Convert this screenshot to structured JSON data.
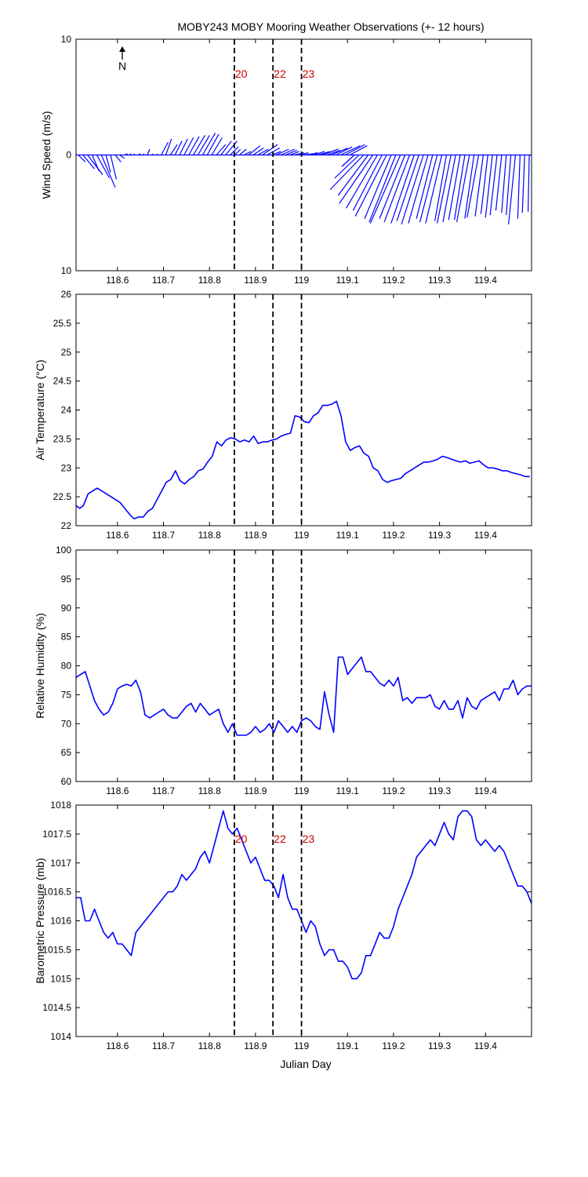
{
  "figure": {
    "title": "MOBY243 MOBY Mooring Weather Observations (+- 12 hours)",
    "north_label": "N",
    "xlabel": "Julian Day",
    "colors": {
      "line": "#0000ff",
      "marker_label": "#cc0000",
      "axis": "#000000",
      "background": "#ffffff"
    }
  },
  "chart_data": [
    {
      "type": "line",
      "variant": "wind-vectors",
      "ylabel": "Wind Speed (m/s)",
      "xlim": [
        118.51,
        119.5
      ],
      "ylim": [
        -10,
        10
      ],
      "yticklabels": [
        "10",
        "0",
        "10"
      ],
      "xticks": [
        "118.6",
        "118.7",
        "118.8",
        "118.9",
        "119",
        "119.1",
        "119.2",
        "119.3",
        "119.4"
      ],
      "vlines": [
        118.854,
        118.938,
        119.0
      ],
      "vline_labels": [
        "20",
        "22",
        "23"
      ],
      "vectors": {
        "x": [
          118.515,
          118.525,
          118.535,
          118.545,
          118.555,
          118.565,
          118.575,
          118.585,
          118.595,
          118.605,
          118.615,
          118.625,
          118.635,
          118.645,
          118.655,
          118.665,
          118.675,
          118.685,
          118.695,
          118.705,
          118.715,
          118.725,
          118.735,
          118.745,
          118.755,
          118.765,
          118.775,
          118.785,
          118.795,
          118.805,
          118.815,
          118.825,
          118.835,
          118.845,
          118.855,
          118.865,
          118.875,
          118.885,
          118.895,
          118.905,
          118.915,
          118.925,
          118.935,
          118.945,
          118.955,
          118.965,
          118.975,
          118.985,
          118.995,
          119.005,
          119.015,
          119.025,
          119.035,
          119.045,
          119.055,
          119.065,
          119.075,
          119.085,
          119.095,
          119.105,
          119.115,
          119.125,
          119.135,
          119.145,
          119.155,
          119.165,
          119.175,
          119.185,
          119.195,
          119.205,
          119.215,
          119.225,
          119.235,
          119.245,
          119.255,
          119.265,
          119.275,
          119.285,
          119.295,
          119.305,
          119.315,
          119.325,
          119.335,
          119.345,
          119.355,
          119.365,
          119.375,
          119.385,
          119.395,
          119.405,
          119.415,
          119.425,
          119.435,
          119.445,
          119.455,
          119.465,
          119.475,
          119.485,
          119.495
        ],
        "u": [
          0.6,
          1.0,
          1.3,
          0.6,
          1.1,
          1.2,
          0.4,
          0.5,
          0.5,
          0.4,
          0.3,
          0.2,
          0.1,
          0.2,
          0.1,
          0.2,
          0.1,
          0.1,
          0.6,
          0.5,
          0.6,
          0.6,
          0.7,
          0.8,
          0.9,
          1.0,
          1.0,
          1.1,
          1.0,
          0.9,
          0.8,
          0.9,
          1.0,
          0.7,
          0.5,
          0.6,
          0.6,
          1.0,
          0.9,
          0.9,
          1.3,
          1.1,
          0.8,
          1.1,
          1.2,
          1.0,
          0.8,
          0.8,
          0.8,
          0.8,
          0.8,
          1.0,
          1.1,
          1.4,
          1.2,
          1.4,
          1.4,
          1.7,
          1.7,
          1.5,
          -1.1,
          -2.1,
          -2.9,
          -2.6,
          -2.9,
          -2.7,
          -2.5,
          -2.7,
          -2.3,
          -2.3,
          -2.6,
          -2.2,
          -2.2,
          -2.0,
          -1.9,
          -1.9,
          -1.7,
          -1.4,
          -1.5,
          -1.4,
          -1.0,
          -1.2,
          -1.1,
          -1.0,
          -0.9,
          -1.1,
          -0.8,
          -1.0,
          -0.7,
          -0.6,
          -0.6,
          -0.6,
          -0.5,
          -0.4,
          -0.4,
          -0.6,
          -0.2,
          -0.2,
          -0.1
        ],
        "v": [
          -0.6,
          -1.2,
          -1.7,
          -1.4,
          -2.0,
          -2.8,
          -1.5,
          -2.1,
          -0.6,
          -0.3,
          0.1,
          0.1,
          0.1,
          0.1,
          0.1,
          0.5,
          0.1,
          0.1,
          1.1,
          1.4,
          0.9,
          1.2,
          1.4,
          1.5,
          1.6,
          1.7,
          1.7,
          1.9,
          1.8,
          1.5,
          0.9,
          1.2,
          1.2,
          0.7,
          0.5,
          0.5,
          0.3,
          0.8,
          0.6,
          0.5,
          0.9,
          0.6,
          0.3,
          0.5,
          0.5,
          0.4,
          0.3,
          0.2,
          0.2,
          0.1,
          0.2,
          0.3,
          0.3,
          0.5,
          0.4,
          0.6,
          0.7,
          0.8,
          0.9,
          0.8,
          -1.0,
          -2.0,
          -3.0,
          -3.5,
          -4.2,
          -4.6,
          -4.8,
          -5.3,
          -5.5,
          -5.8,
          -5.9,
          -5.5,
          -5.8,
          -5.9,
          -5.7,
          -6.0,
          -5.9,
          -5.5,
          -5.8,
          -5.9,
          -5.7,
          -5.9,
          -5.8,
          -5.6,
          -5.6,
          -5.8,
          -5.5,
          -5.4,
          -5.3,
          -5.1,
          -5.4,
          -5.2,
          -4.8,
          -5.0,
          -5.2,
          -6.0,
          -5.5,
          -5.0,
          -4.9
        ]
      }
    },
    {
      "type": "line",
      "ylabel": "Air Temperature (°C)",
      "xlim": [
        118.51,
        119.5
      ],
      "ylim": [
        22,
        26
      ],
      "yticks": [
        "22",
        "22.5",
        "23",
        "23.5",
        "24",
        "24.5",
        "25",
        "25.5",
        "26"
      ],
      "xticks": [
        "118.6",
        "118.7",
        "118.8",
        "118.9",
        "119",
        "119.1",
        "119.2",
        "119.3",
        "119.4"
      ],
      "vlines": [
        118.854,
        118.938,
        119.0
      ],
      "x": [
        118.51,
        118.518,
        118.526,
        118.536,
        118.546,
        118.556,
        118.566,
        118.576,
        118.586,
        118.596,
        118.606,
        118.616,
        118.626,
        118.636,
        118.646,
        118.656,
        118.666,
        118.676,
        118.686,
        118.696,
        118.706,
        118.716,
        118.726,
        118.736,
        118.746,
        118.756,
        118.766,
        118.776,
        118.786,
        118.796,
        118.806,
        118.816,
        118.826,
        118.836,
        118.846,
        118.856,
        118.866,
        118.876,
        118.886,
        118.896,
        118.906,
        118.916,
        118.926,
        118.936,
        118.946,
        118.956,
        118.966,
        118.976,
        118.986,
        118.996,
        119.006,
        119.016,
        119.026,
        119.036,
        119.046,
        119.056,
        119.066,
        119.076,
        119.086,
        119.096,
        119.106,
        119.116,
        119.126,
        119.136,
        119.146,
        119.156,
        119.166,
        119.176,
        119.186,
        119.196,
        119.206,
        119.216,
        119.226,
        119.236,
        119.246,
        119.256,
        119.266,
        119.276,
        119.286,
        119.296,
        119.306,
        119.316,
        119.326,
        119.336,
        119.346,
        119.356,
        119.366,
        119.376,
        119.386,
        119.396,
        119.406,
        119.416,
        119.426,
        119.436,
        119.446,
        119.456,
        119.466,
        119.476,
        119.486,
        119.496
      ],
      "y": [
        22.35,
        22.3,
        22.35,
        22.55,
        22.6,
        22.65,
        22.6,
        22.55,
        22.5,
        22.45,
        22.4,
        22.3,
        22.2,
        22.12,
        22.15,
        22.15,
        22.25,
        22.3,
        22.45,
        22.6,
        22.75,
        22.8,
        22.95,
        22.78,
        22.72,
        22.8,
        22.85,
        22.95,
        22.98,
        23.1,
        23.2,
        23.45,
        23.38,
        23.48,
        23.52,
        23.5,
        23.45,
        23.48,
        23.45,
        23.55,
        23.42,
        23.45,
        23.45,
        23.48,
        23.5,
        23.55,
        23.58,
        23.6,
        23.9,
        23.88,
        23.8,
        23.78,
        23.9,
        23.95,
        24.08,
        24.08,
        24.1,
        24.15,
        23.9,
        23.45,
        23.3,
        23.35,
        23.38,
        23.25,
        23.2,
        23.0,
        22.95,
        22.8,
        22.75,
        22.78,
        22.8,
        22.82,
        22.9,
        22.95,
        23.0,
        23.05,
        23.1,
        23.1,
        23.12,
        23.15,
        23.2,
        23.18,
        23.15,
        23.12,
        23.1,
        23.12,
        23.08,
        23.1,
        23.12,
        23.05,
        23.0,
        23.0,
        22.98,
        22.95,
        22.95,
        22.92,
        22.9,
        22.88,
        22.85,
        22.85
      ]
    },
    {
      "type": "line",
      "ylabel": "Relative Humidity (%)",
      "xlim": [
        118.51,
        119.5
      ],
      "ylim": [
        60,
        100
      ],
      "yticks": [
        "60",
        "65",
        "70",
        "75",
        "80",
        "85",
        "90",
        "95",
        "100"
      ],
      "xticks": [
        "118.6",
        "118.7",
        "118.8",
        "118.9",
        "119",
        "119.1",
        "119.2",
        "119.3",
        "119.4"
      ],
      "vlines": [
        118.854,
        118.938,
        119.0
      ],
      "x": [
        118.51,
        118.52,
        118.53,
        118.54,
        118.55,
        118.56,
        118.57,
        118.58,
        118.59,
        118.6,
        118.61,
        118.62,
        118.63,
        118.64,
        118.65,
        118.66,
        118.67,
        118.68,
        118.69,
        118.7,
        118.71,
        118.72,
        118.73,
        118.74,
        118.75,
        118.76,
        118.77,
        118.78,
        118.79,
        118.8,
        118.81,
        118.82,
        118.83,
        118.84,
        118.85,
        118.86,
        118.87,
        118.88,
        118.89,
        118.9,
        118.91,
        118.92,
        118.93,
        118.94,
        118.95,
        118.96,
        118.97,
        118.98,
        118.99,
        119.0,
        119.01,
        119.02,
        119.03,
        119.04,
        119.05,
        119.06,
        119.07,
        119.08,
        119.09,
        119.1,
        119.11,
        119.12,
        119.13,
        119.14,
        119.15,
        119.16,
        119.17,
        119.18,
        119.19,
        119.2,
        119.21,
        119.22,
        119.23,
        119.24,
        119.25,
        119.26,
        119.27,
        119.28,
        119.29,
        119.3,
        119.31,
        119.32,
        119.33,
        119.34,
        119.35,
        119.36,
        119.37,
        119.38,
        119.39,
        119.4,
        119.41,
        119.42,
        119.43,
        119.44,
        119.45,
        119.46,
        119.47,
        119.48,
        119.49,
        119.5
      ],
      "y": [
        78.0,
        78.5,
        79.0,
        76.5,
        74.0,
        72.5,
        71.5,
        72.0,
        73.5,
        76.0,
        76.5,
        76.8,
        76.5,
        77.5,
        75.5,
        71.5,
        71.0,
        71.5,
        72.0,
        72.5,
        71.5,
        71.0,
        71.0,
        72.0,
        73.0,
        73.5,
        72.0,
        73.5,
        72.5,
        71.5,
        72.0,
        72.5,
        70.0,
        68.5,
        70.0,
        68.0,
        68.0,
        68.0,
        68.5,
        69.5,
        68.5,
        69.0,
        70.0,
        68.5,
        70.5,
        69.5,
        68.5,
        69.5,
        68.5,
        70.5,
        71.0,
        70.5,
        69.5,
        69.0,
        75.5,
        71.5,
        68.5,
        81.5,
        81.5,
        78.5,
        79.5,
        80.5,
        81.5,
        79.0,
        79.0,
        78.0,
        77.0,
        76.5,
        77.5,
        76.5,
        78.0,
        74.0,
        74.5,
        73.5,
        74.5,
        74.5,
        74.5,
        75.0,
        73.0,
        72.5,
        74.0,
        72.5,
        72.5,
        74.0,
        71.0,
        74.5,
        73.0,
        72.5,
        74.0,
        74.5,
        75.0,
        75.5,
        74.0,
        76.0,
        76.0,
        77.5,
        75.0,
        76.0,
        76.5,
        76.5
      ]
    },
    {
      "type": "line",
      "ylabel": "Barometric Pressure (mb)",
      "xlim": [
        118.51,
        119.5
      ],
      "ylim": [
        1014,
        1018
      ],
      "yticks": [
        "1014",
        "1014.5",
        "1015",
        "1015.5",
        "1016",
        "1016.5",
        "1017",
        "1017.5",
        "1018"
      ],
      "xticks": [
        "118.6",
        "118.7",
        "118.8",
        "118.9",
        "119",
        "119.1",
        "119.2",
        "119.3",
        "119.4"
      ],
      "vlines": [
        118.854,
        118.938,
        119.0
      ],
      "vline_labels": [
        "20",
        "22",
        "23"
      ],
      "x": [
        118.51,
        118.52,
        118.53,
        118.54,
        118.55,
        118.56,
        118.57,
        118.58,
        118.59,
        118.6,
        118.61,
        118.62,
        118.63,
        118.64,
        118.65,
        118.66,
        118.67,
        118.68,
        118.69,
        118.7,
        118.71,
        118.72,
        118.73,
        118.74,
        118.75,
        118.76,
        118.77,
        118.78,
        118.79,
        118.8,
        118.81,
        118.82,
        118.83,
        118.84,
        118.85,
        118.86,
        118.87,
        118.88,
        118.89,
        118.9,
        118.91,
        118.92,
        118.93,
        118.94,
        118.95,
        118.96,
        118.97,
        118.98,
        118.99,
        119.0,
        119.01,
        119.02,
        119.03,
        119.04,
        119.05,
        119.06,
        119.07,
        119.08,
        119.09,
        119.1,
        119.11,
        119.12,
        119.13,
        119.14,
        119.15,
        119.16,
        119.17,
        119.18,
        119.19,
        119.2,
        119.21,
        119.22,
        119.23,
        119.24,
        119.25,
        119.26,
        119.27,
        119.28,
        119.29,
        119.3,
        119.31,
        119.32,
        119.33,
        119.34,
        119.35,
        119.36,
        119.37,
        119.38,
        119.39,
        119.4,
        119.41,
        119.42,
        119.43,
        119.44,
        119.45,
        119.46,
        119.47,
        119.48,
        119.49,
        119.5
      ],
      "y": [
        1016.4,
        1016.4,
        1016.0,
        1016.0,
        1016.2,
        1016.0,
        1015.8,
        1015.7,
        1015.8,
        1015.6,
        1015.6,
        1015.5,
        1015.4,
        1015.8,
        1015.9,
        1016.0,
        1016.1,
        1016.2,
        1016.3,
        1016.4,
        1016.5,
        1016.5,
        1016.6,
        1016.8,
        1016.7,
        1016.8,
        1016.9,
        1017.1,
        1017.2,
        1017.0,
        1017.3,
        1017.6,
        1017.9,
        1017.6,
        1017.5,
        1017.6,
        1017.4,
        1017.2,
        1017.0,
        1017.1,
        1016.9,
        1016.7,
        1016.7,
        1016.6,
        1016.4,
        1016.8,
        1016.4,
        1016.2,
        1016.2,
        1016.0,
        1015.8,
        1016.0,
        1015.9,
        1015.6,
        1015.4,
        1015.5,
        1015.5,
        1015.3,
        1015.3,
        1015.2,
        1015.0,
        1015.0,
        1015.1,
        1015.4,
        1015.4,
        1015.6,
        1015.8,
        1015.7,
        1015.7,
        1015.9,
        1016.2,
        1016.4,
        1016.6,
        1016.8,
        1017.1,
        1017.2,
        1017.3,
        1017.4,
        1017.3,
        1017.5,
        1017.7,
        1017.5,
        1017.4,
        1017.8,
        1017.9,
        1017.9,
        1017.8,
        1017.4,
        1017.3,
        1017.4,
        1017.3,
        1017.2,
        1017.3,
        1017.2,
        1017.0,
        1016.8,
        1016.6,
        1016.6,
        1016.5,
        1016.3
      ]
    }
  ]
}
